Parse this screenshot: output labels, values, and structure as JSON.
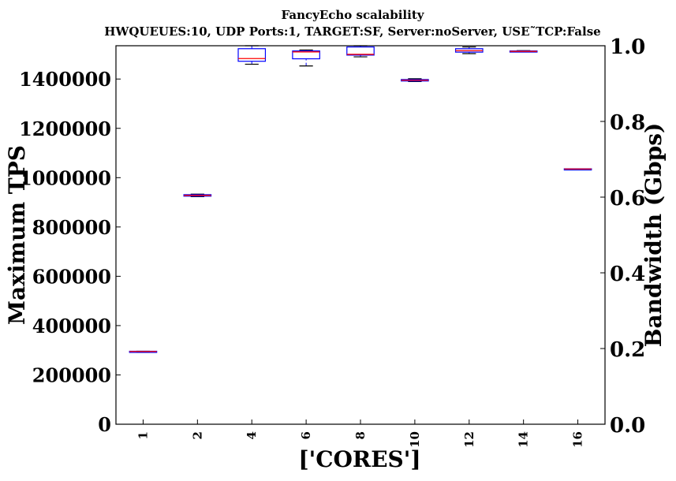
{
  "chart_data": {
    "type": "box",
    "title": "FancyEcho scalability",
    "subtitle": "HWQUEUES:10, UDP Ports:1, TARGET:SF, Server:noServer, USE˜TCP:False",
    "xlabel": "['CORES']",
    "ylabel": "Maximum TPS",
    "y2label": "Bandwidth (Gbps)",
    "ylim": [
      0,
      1535000
    ],
    "y2lim": [
      0.0,
      1.0
    ],
    "yticks": [
      0,
      200000,
      400000,
      600000,
      800000,
      1000000,
      1200000,
      1400000
    ],
    "y2ticks": [
      "0.0",
      "0.2",
      "0.4",
      "0.6",
      "0.8",
      "1.0"
    ],
    "categories": [
      "1",
      "2",
      "4",
      "6",
      "8",
      "10",
      "12",
      "14",
      "16"
    ],
    "boxes": [
      {
        "category": "1",
        "whisker_low": 294000,
        "q1": 294000,
        "median": 295000,
        "q3": 296000,
        "whisker_high": 296000
      },
      {
        "category": "2",
        "whisker_low": 923000,
        "q1": 925000,
        "median": 928000,
        "q3": 931000,
        "whisker_high": 933000
      },
      {
        "category": "4",
        "whisker_low": 1460000,
        "q1": 1472000,
        "median": 1483000,
        "q3": 1523000,
        "whisker_high": 1535000
      },
      {
        "category": "6",
        "whisker_low": 1453000,
        "q1": 1482000,
        "median": 1510000,
        "q3": 1514000,
        "whisker_high": 1518000
      },
      {
        "category": "8",
        "whisker_low": 1490000,
        "q1": 1497000,
        "median": 1500000,
        "q3": 1530000,
        "whisker_high": 1535000
      },
      {
        "category": "10",
        "whisker_low": 1390000,
        "q1": 1392000,
        "median": 1395000,
        "q3": 1398000,
        "whisker_high": 1401000
      },
      {
        "category": "12",
        "whisker_low": 1503000,
        "q1": 1509000,
        "median": 1515000,
        "q3": 1523000,
        "whisker_high": 1530000
      },
      {
        "category": "14",
        "whisker_low": 1510000,
        "q1": 1511000,
        "median": 1512000,
        "q3": 1514000,
        "whisker_high": 1515000
      },
      {
        "category": "16",
        "whisker_low": 1034000,
        "q1": 1034000,
        "median": 1035000,
        "q3": 1036000,
        "whisker_high": 1036000
      }
    ],
    "box_color": "#0000ff",
    "median_color": "#ff0000",
    "grid": false
  }
}
